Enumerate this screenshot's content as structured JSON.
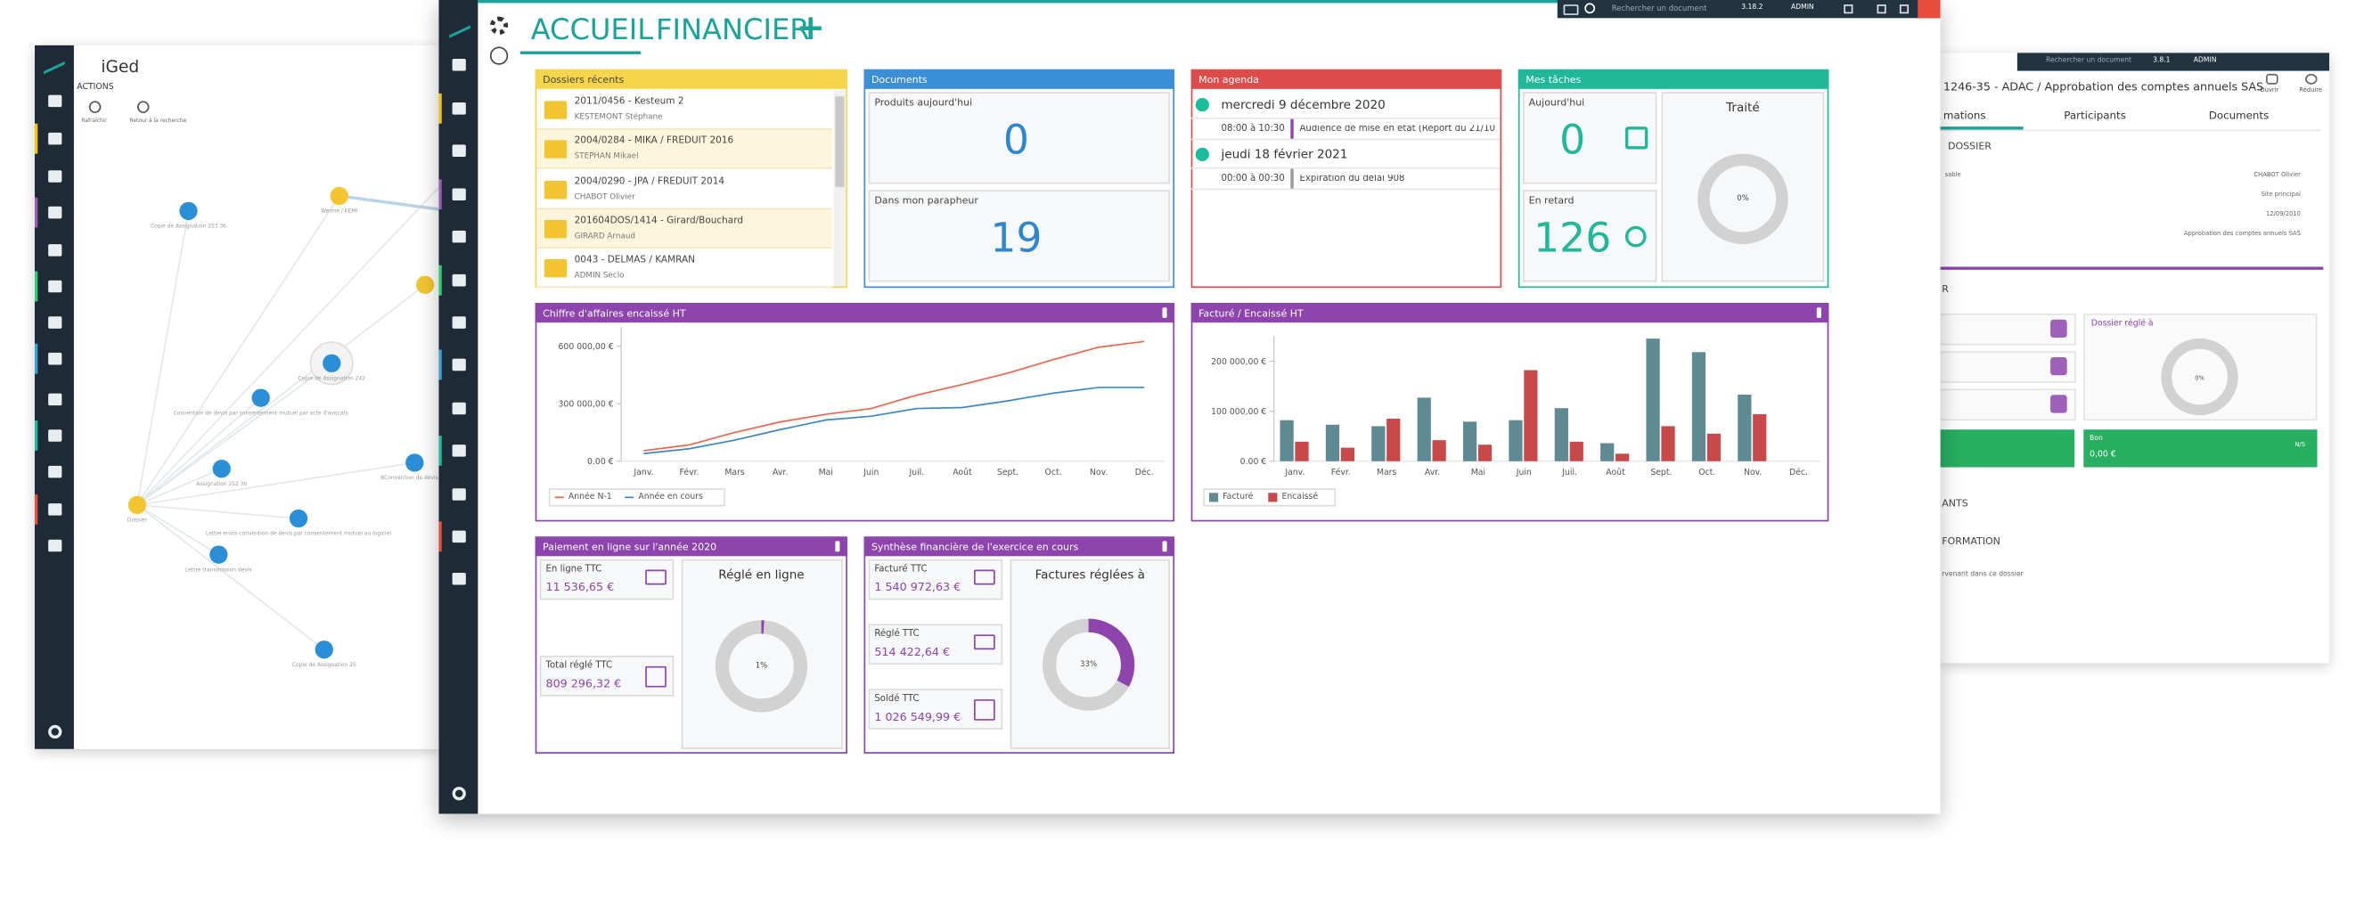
{
  "left_window": {
    "title": "iGed",
    "actions_title": "ACTIONS",
    "actions": [
      "Rafraîchir",
      "Retour à la recherche"
    ],
    "graph_nodes": [
      "Copie de Assignation 253 36",
      "Wermé / KEMI",
      "Copie de Assignation 242",
      "Convention de devis par consentement mutuel par acte d'avocats",
      "Assignation 252 36",
      "BConvention de devis par",
      "Dossier",
      "Lettre envoi convention de devis par consentement mutuel au logiciel",
      "Lettre transmission devis",
      "Copie de Assignation 25"
    ]
  },
  "right_window": {
    "toolbar": {
      "search_placeholder": "Rechercher un document",
      "version": "3.8.1",
      "user": "ADMIN"
    },
    "title": "1246-35 - ADAC / Approbation des comptes annuels SAS",
    "buttons": [
      "Ouvrir",
      "Réduire"
    ],
    "tabs": [
      "mations",
      "Participants",
      "Documents"
    ],
    "section_dossier": "DOSSIER",
    "field_label": "sable",
    "fields": [
      "CHABOT Olivier",
      "Site principal",
      "12/09/2010",
      "Approbation des comptes annuels SAS"
    ],
    "section_r": "R",
    "settled": {
      "label": "Dossier réglé à",
      "value": 0,
      "value_label": "0%"
    },
    "status": {
      "label": "Bon",
      "amount": "0,00 €",
      "code": "N/S"
    },
    "sections": [
      "ANTS",
      "FORMATION"
    ],
    "note": "rvenant dans ce dossier"
  },
  "main_window": {
    "toolbar": {
      "search_placeholder": "Rechercher un document",
      "version": "3.18.2",
      "user": "ADMIN"
    },
    "tabs": [
      "ACCUEIL",
      "FINANCIER"
    ],
    "add_tab": "+",
    "recent_folders": {
      "title": "Dossiers récents",
      "items": [
        {
          "title": "2011/0456 - Kesteum 2",
          "owner": "KESTEMONT Stéphane"
        },
        {
          "title": "2004/0284 - MIKA / FREDUIT 2016",
          "owner": "STEPHAN Mikael"
        },
        {
          "title": "2004/0290 - JPA / FREDUIT 2014",
          "owner": "CHABOT Olivier"
        },
        {
          "title": "201604DOS/1414 - Girard/Bouchard",
          "owner": "GIRARD Arnaud"
        },
        {
          "title": "0043 - DELMAS / KAMRAN",
          "owner": "ADMIN Seclo"
        }
      ]
    },
    "documents": {
      "title": "Documents",
      "today": {
        "label": "Produits aujourd'hui",
        "value": 0
      },
      "signature": {
        "label": "Dans mon parapheur",
        "value": 19
      }
    },
    "agenda": {
      "title": "Mon agenda",
      "days": [
        {
          "date": "mercredi 9 décembre 2020",
          "events": [
            {
              "time": "08:00 à 10:30",
              "label": "Audience de mise en état (Report du 21/10"
            }
          ]
        },
        {
          "date": "jeudi 18 février 2021",
          "events": [
            {
              "time": "00:00 à 00:30",
              "label": "Expiration du délai 908"
            }
          ]
        }
      ]
    },
    "tasks": {
      "title": "Mes tâches",
      "today": {
        "label": "Aujourd'hui",
        "value": 0
      },
      "late": {
        "label": "En retard",
        "value": 126
      },
      "done": {
        "label": "Traité",
        "value": 0,
        "value_label": "0%"
      }
    },
    "online_payment": {
      "title": "Paiement en ligne sur l'année 2020",
      "online": {
        "label": "En ligne TTC",
        "value": "11 536,65 €"
      },
      "total": {
        "label": "Total réglé TTC",
        "value": "809 296,32 €"
      },
      "ratio": {
        "label": "Réglé en ligne",
        "value": 1,
        "value_label": "1%"
      }
    },
    "financial_summary": {
      "title": "Synthèse financière de l'exercice en cours",
      "invoiced": {
        "label": "Facturé TTC",
        "value": "1 540 972,63 €"
      },
      "paid": {
        "label": "Réglé TTC",
        "value": "514 422,64 €"
      },
      "balance": {
        "label": "Soldé TTC",
        "value": "1 026 549,99 €"
      },
      "ratio": {
        "label": "Factures réglées à",
        "value": 33,
        "value_label": "33%"
      }
    }
  },
  "chart_data": [
    {
      "type": "line",
      "title": "Chiffre d'affaires encaissé HT",
      "categories": [
        "Janv.",
        "Févr.",
        "Mars",
        "Avr.",
        "Mai",
        "Juin",
        "Juil.",
        "Août",
        "Sept.",
        "Oct.",
        "Nov.",
        "Déc."
      ],
      "series": [
        {
          "name": "Année N-1",
          "color": "#e8664a",
          "values": [
            55000,
            85000,
            150000,
            205000,
            245000,
            275000,
            345000,
            400000,
            460000,
            530000,
            595000,
            625000
          ]
        },
        {
          "name": "Année en cours",
          "color": "#3d86c6",
          "values": [
            40000,
            65000,
            110000,
            165000,
            215000,
            235000,
            275000,
            280000,
            315000,
            355000,
            385000,
            385000
          ]
        }
      ],
      "ylim": [
        0,
        700000
      ],
      "yticks": [
        {
          "value": 0,
          "label": "0.00 €"
        },
        {
          "value": 300000,
          "label": "300 000,00 €"
        },
        {
          "value": 600000,
          "label": "600 000,00 €"
        }
      ],
      "legend": "bottom-left"
    },
    {
      "type": "bar",
      "title": "Facturé / Encaissé HT",
      "categories": [
        "Janv.",
        "Févr.",
        "Mars",
        "Avr.",
        "Mai",
        "Juin",
        "Juil.",
        "Août",
        "Sept.",
        "Oct.",
        "Nov.",
        "Déc."
      ],
      "series": [
        {
          "name": "Facturé",
          "color": "#5e8a93",
          "values": [
            82000,
            73000,
            70000,
            127000,
            79000,
            82000,
            106000,
            36000,
            245000,
            218000,
            133000,
            0
          ]
        },
        {
          "name": "Encaissé",
          "color": "#c9494a",
          "values": [
            39000,
            27000,
            85000,
            42000,
            33000,
            182000,
            39000,
            15000,
            70000,
            55000,
            94000,
            0
          ]
        }
      ],
      "ylim": [
        0,
        250000
      ],
      "yticks": [
        {
          "value": 0,
          "label": "0.00 €"
        },
        {
          "value": 100000,
          "label": "100 000,00 €"
        },
        {
          "value": 200000,
          "label": "200 000,00 €"
        }
      ],
      "legend": "bottom-left"
    }
  ]
}
